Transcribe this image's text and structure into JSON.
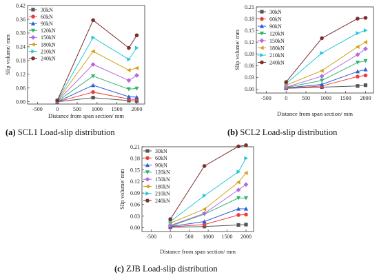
{
  "chart_data": [
    {
      "type": "line",
      "caption_letter": "(a)",
      "caption_text": " SCL1 Load-slip distribution",
      "xlabel": "Distance from span section/ mm",
      "ylabel": "Slip volume/ mm",
      "xlim": [
        -750,
        2200
      ],
      "ylim": [
        -0.01,
        0.42
      ],
      "xticks": [
        -500,
        0,
        500,
        1000,
        1500,
        2000
      ],
      "xtick_labels": [
        "-500",
        "0",
        "500",
        "1000",
        "1500",
        "2000"
      ],
      "yticks": [
        0.0,
        0.06,
        0.12,
        0.18,
        0.24,
        0.3,
        0.36,
        0.42
      ],
      "ytick_labels": [
        "0.00",
        "0.06",
        "0.12",
        "0.18",
        "0.24",
        "0.30",
        "0.36",
        "0.42"
      ],
      "legend_position": "top-left",
      "x": [
        0,
        900,
        1800,
        2000
      ],
      "series": [
        {
          "name": "30kN",
          "color": "#555555",
          "marker": "square",
          "values": [
            0.0,
            0.018,
            0.005,
            0.003
          ]
        },
        {
          "name": "60kN",
          "color": "#e8413c",
          "marker": "circle",
          "values": [
            0.0,
            0.042,
            0.012,
            0.01
          ]
        },
        {
          "name": "90kN",
          "color": "#2a5ad6",
          "marker": "triangle",
          "values": [
            0.0,
            0.072,
            0.022,
            0.02
          ]
        },
        {
          "name": "120kN",
          "color": "#2fb36b",
          "marker": "tri-down",
          "values": [
            0.002,
            0.112,
            0.055,
            0.058
          ]
        },
        {
          "name": "150kN",
          "color": "#b66ae0",
          "marker": "diamond",
          "values": [
            0.003,
            0.163,
            0.093,
            0.115
          ]
        },
        {
          "name": "180kN",
          "color": "#d4a017",
          "marker": "tri-left",
          "values": [
            0.004,
            0.22,
            0.138,
            0.147
          ]
        },
        {
          "name": "210kN",
          "color": "#22c8d8",
          "marker": "tri-right",
          "values": [
            0.005,
            0.28,
            0.185,
            0.235
          ]
        },
        {
          "name": "240kN",
          "color": "#7a3030",
          "marker": "circle",
          "values": [
            0.006,
            0.356,
            0.235,
            0.29
          ]
        }
      ]
    },
    {
      "type": "line",
      "caption_letter": "(b)",
      "caption_text": " SCL2 Load-slip distribution",
      "xlabel": "Distance from span section/ mm",
      "ylabel": "Slip volume/ mm",
      "xlim": [
        -750,
        2200
      ],
      "ylim": [
        -0.01,
        0.21
      ],
      "xticks": [
        -500,
        0,
        500,
        1000,
        1500,
        2000
      ],
      "xtick_labels": [
        "-500",
        "0",
        "500",
        "1000",
        "1500",
        "2000"
      ],
      "yticks": [
        0.0,
        0.03,
        0.06,
        0.09,
        0.12,
        0.15,
        0.18,
        0.21
      ],
      "ytick_labels": [
        "0.00",
        "0.03",
        "0.06",
        "0.09",
        "0.12",
        "0.15",
        "0.18",
        "0.21"
      ],
      "legend_position": "top-left",
      "x": [
        0,
        900,
        1800,
        2000
      ],
      "series": [
        {
          "name": "30kN",
          "color": "#555555",
          "marker": "square",
          "values": [
            0.002,
            0.005,
            0.008,
            0.01
          ]
        },
        {
          "name": "60kN",
          "color": "#e8413c",
          "marker": "circle",
          "values": [
            0.002,
            0.008,
            0.032,
            0.035
          ]
        },
        {
          "name": "90kN",
          "color": "#2a5ad6",
          "marker": "triangle",
          "values": [
            0.003,
            0.012,
            0.045,
            0.05
          ]
        },
        {
          "name": "120kN",
          "color": "#2fb36b",
          "marker": "tri-down",
          "values": [
            0.004,
            0.022,
            0.068,
            0.072
          ]
        },
        {
          "name": "150kN",
          "color": "#b66ae0",
          "marker": "diamond",
          "values": [
            0.005,
            0.033,
            0.088,
            0.103
          ]
        },
        {
          "name": "180kN",
          "color": "#d4a017",
          "marker": "tri-left",
          "values": [
            0.01,
            0.047,
            0.108,
            0.12
          ]
        },
        {
          "name": "210kN",
          "color": "#22c8d8",
          "marker": "tri-right",
          "values": [
            0.014,
            0.092,
            0.143,
            0.15
          ]
        },
        {
          "name": "240kN",
          "color": "#7a3030",
          "marker": "circle",
          "values": [
            0.018,
            0.13,
            0.18,
            0.182
          ]
        }
      ]
    },
    {
      "type": "line",
      "caption_letter": "(c)",
      "caption_text": " ZJB Load-slip distribution",
      "xlabel": "Distance from span section/ mm",
      "ylabel": "Slip volume/ mm",
      "xlim": [
        -750,
        2200
      ],
      "ylim": [
        -0.01,
        0.21
      ],
      "xticks": [
        -500,
        0,
        500,
        1000,
        1500,
        2000
      ],
      "xtick_labels": [
        "-500",
        "0",
        "500",
        "1000",
        "1500",
        "2000"
      ],
      "yticks": [
        0.0,
        0.03,
        0.06,
        0.09,
        0.12,
        0.15,
        0.18,
        0.21
      ],
      "ytick_labels": [
        "0.00",
        "0.03",
        "0.06",
        "0.09",
        "0.12",
        "0.15",
        "0.18",
        "0.21"
      ],
      "legend_position": "top-left",
      "x": [
        0,
        900,
        1800,
        2000
      ],
      "series": [
        {
          "name": "30kN",
          "color": "#555555",
          "marker": "square",
          "values": [
            0.001,
            0.003,
            0.007,
            0.008
          ]
        },
        {
          "name": "60kN",
          "color": "#e8413c",
          "marker": "circle",
          "values": [
            0.002,
            0.008,
            0.033,
            0.034
          ]
        },
        {
          "name": "90kN",
          "color": "#2a5ad6",
          "marker": "triangle",
          "values": [
            0.003,
            0.016,
            0.049,
            0.049
          ]
        },
        {
          "name": "120kN",
          "color": "#2fb36b",
          "marker": "tri-down",
          "values": [
            0.004,
            0.035,
            0.077,
            0.077
          ]
        },
        {
          "name": "150kN",
          "color": "#b66ae0",
          "marker": "diamond",
          "values": [
            0.006,
            0.037,
            0.098,
            0.112
          ]
        },
        {
          "name": "180kN",
          "color": "#d4a017",
          "marker": "tri-left",
          "values": [
            0.012,
            0.048,
            0.118,
            0.142
          ]
        },
        {
          "name": "210kN",
          "color": "#22c8d8",
          "marker": "tri-right",
          "values": [
            0.016,
            0.083,
            0.145,
            0.18
          ]
        },
        {
          "name": "240kN",
          "color": "#7a3030",
          "marker": "circle",
          "values": [
            0.022,
            0.16,
            0.211,
            0.214
          ]
        }
      ]
    }
  ]
}
